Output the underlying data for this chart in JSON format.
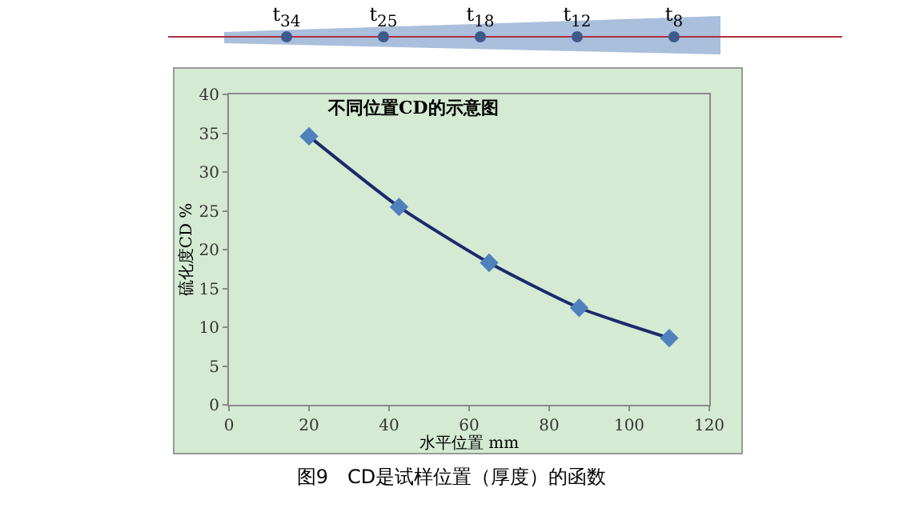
{
  "chart_data": {
    "type": "line",
    "title": "不同位置CD的示意图",
    "xlabel": "水平位置 mm",
    "ylabel": "硫化度CD %",
    "x": [
      20,
      42.5,
      65,
      87.5,
      110
    ],
    "series": [
      {
        "color": "#1b2a6b",
        "marker": "none",
        "values": [
          34.6,
          25.5,
          18.3,
          12.5,
          8.6
        ]
      },
      {
        "type": "scatter",
        "color": "#4f81bd",
        "values": [
          34.6,
          25.5,
          18.3,
          12.5,
          8.6
        ]
      }
    ],
    "xlim": [
      0,
      120
    ],
    "xticks": [
      0,
      20,
      40,
      60,
      80,
      100,
      120
    ],
    "ylim": [
      0,
      40
    ],
    "yticks": [
      0,
      5,
      10,
      15,
      20,
      25,
      30,
      35,
      40
    ],
    "grid": false,
    "marker": "diamond",
    "line_style": "solid",
    "annotations": [
      "t$_{34}$",
      "t$_{25}$",
      "t$_{18}$",
      "t$_{12}$",
      "t$_{8}$",
      "图9　CD是试样位置（厚度）的函数"
    ]
  }
}
